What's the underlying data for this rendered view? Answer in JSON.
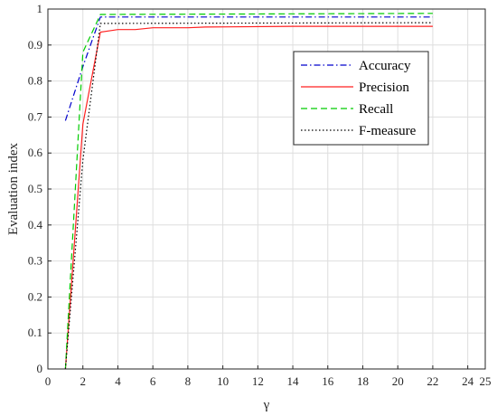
{
  "chart_data": {
    "type": "line",
    "xlabel": "γ",
    "ylabel": "Evaluation index",
    "xlim": [
      0,
      25
    ],
    "ylim": [
      0,
      1
    ],
    "x_ticks": [
      "0",
      "2",
      "4",
      "6",
      "8",
      "10",
      "12",
      "14",
      "16",
      "18",
      "20",
      "22",
      "24",
      "25"
    ],
    "y_ticks": [
      "0",
      "0.1",
      "0.2",
      "0.3",
      "0.4",
      "0.5",
      "0.6",
      "0.7",
      "0.8",
      "0.9",
      "1"
    ],
    "grid": true,
    "legend_position": "upper-right",
    "series": [
      {
        "name": "Accuracy",
        "color": "#0000cc",
        "dash": "dashdot",
        "x": [
          1,
          2,
          3,
          22
        ],
        "y": [
          0.69,
          0.84,
          0.978,
          0.978
        ]
      },
      {
        "name": "Precision",
        "color": "#ff2020",
        "dash": "solid",
        "x": [
          1,
          2,
          3,
          4,
          5,
          6,
          8,
          9,
          14,
          22
        ],
        "y": [
          0.0,
          0.68,
          0.936,
          0.943,
          0.943,
          0.948,
          0.948,
          0.95,
          0.952,
          0.952
        ]
      },
      {
        "name": "Recall",
        "color": "#00cc00",
        "dash": "dashed",
        "x": [
          1,
          2,
          3,
          22
        ],
        "y": [
          0.0,
          0.88,
          0.985,
          0.988
        ]
      },
      {
        "name": "F-measure",
        "color": "#000000",
        "dash": "dotted",
        "x": [
          1,
          2,
          3,
          22
        ],
        "y": [
          0.0,
          0.58,
          0.96,
          0.962
        ]
      }
    ]
  }
}
